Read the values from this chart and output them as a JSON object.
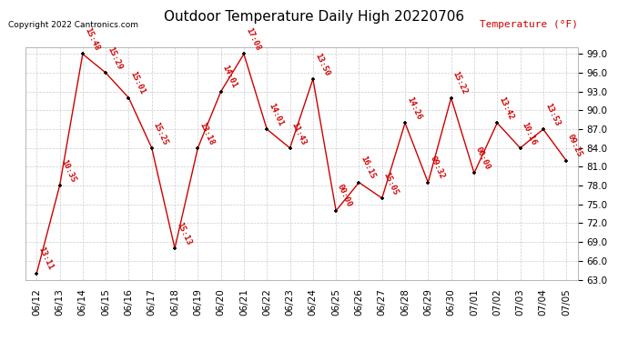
{
  "title": "Outdoor Temperature Daily High 20220706",
  "ylabel": "Temperature (°F)",
  "copyright": "Copyright 2022 Cantronics.com",
  "background_color": "#ffffff",
  "plot_bg_color": "#ffffff",
  "grid_color": "#cccccc",
  "line_color": "#cc0000",
  "marker_color": "#000000",
  "label_color": "#cc0000",
  "ylabel_color": "#cc0000",
  "dates": [
    "06/12",
    "06/13",
    "06/14",
    "06/15",
    "06/16",
    "06/17",
    "06/18",
    "06/19",
    "06/20",
    "06/21",
    "06/22",
    "06/23",
    "06/24",
    "06/25",
    "06/26",
    "06/27",
    "06/28",
    "06/29",
    "06/30",
    "07/01",
    "07/02",
    "07/03",
    "07/04",
    "07/05"
  ],
  "values": [
    64.0,
    78.0,
    99.0,
    96.0,
    92.0,
    84.0,
    68.0,
    84.0,
    93.0,
    99.0,
    87.0,
    84.0,
    95.0,
    74.0,
    78.5,
    76.0,
    88.0,
    78.5,
    92.0,
    80.0,
    88.0,
    84.0,
    87.0,
    82.0
  ],
  "labels": [
    "13:11",
    "10:35",
    "15:48",
    "15:29",
    "15:01",
    "15:25",
    "15:13",
    "13:18",
    "14:01",
    "17:08",
    "14:01",
    "11:43",
    "13:50",
    "00:00",
    "16:15",
    "15:05",
    "14:26",
    "09:32",
    "15:22",
    "00:00",
    "13:42",
    "10:16",
    "13:53",
    "09:25"
  ],
  "ylim_min": 63.0,
  "ylim_max": 100.0,
  "yticks": [
    63.0,
    66.0,
    69.0,
    72.0,
    75.0,
    78.0,
    81.0,
    84.0,
    87.0,
    90.0,
    93.0,
    96.0,
    99.0
  ],
  "title_fontsize": 11,
  "label_fontsize": 6.5,
  "tick_fontsize": 7.5,
  "copyright_fontsize": 6.5,
  "ylabel_fontsize": 8
}
